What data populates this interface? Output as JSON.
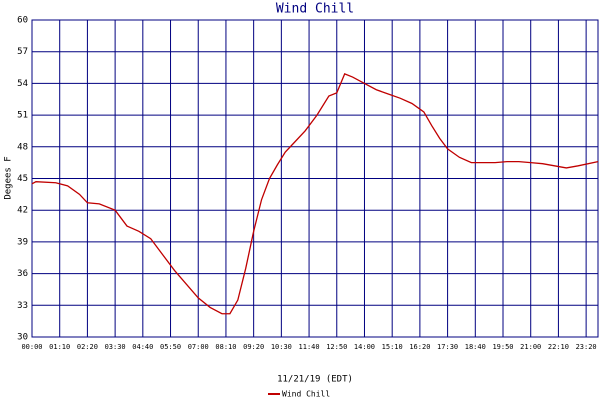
{
  "chart_data": {
    "type": "line",
    "title": "Wind Chill",
    "ylabel": "Degees F",
    "xlabel": "11/21/19 (EDT)",
    "x": [
      0,
      10,
      60,
      90,
      120,
      140,
      170,
      210,
      240,
      270,
      300,
      330,
      360,
      390,
      420,
      450,
      480,
      500,
      520,
      540,
      560,
      580,
      600,
      620,
      640,
      660,
      690,
      720,
      750,
      770,
      790,
      810,
      840,
      870,
      900,
      930,
      960,
      990,
      1010,
      1030,
      1050,
      1080,
      1110,
      1140,
      1170,
      1200,
      1230,
      1260,
      1290,
      1320,
      1350,
      1380,
      1430
    ],
    "series": [
      {
        "name": "Wind Chill",
        "color": "#c00000",
        "values": [
          44.5,
          44.7,
          44.6,
          44.3,
          43.5,
          42.7,
          42.6,
          42.0,
          40.5,
          40.0,
          39.3,
          37.8,
          36.3,
          35.0,
          33.7,
          32.8,
          32.2,
          32.2,
          33.5,
          36.5,
          40.0,
          43.0,
          45.0,
          46.3,
          47.5,
          48.3,
          49.5,
          51.0,
          52.8,
          53.1,
          54.9,
          54.6,
          54.0,
          53.4,
          53.0,
          52.6,
          52.1,
          51.3,
          50.0,
          48.8,
          47.8,
          47.0,
          46.5,
          46.5,
          46.5,
          46.6,
          46.6,
          46.5,
          46.4,
          46.2,
          46.0,
          46.2,
          46.6
        ]
      }
    ],
    "xlim": [
      0,
      1430
    ],
    "ylim": [
      30,
      60
    ],
    "xticks": [
      {
        "value": 0,
        "label": "00:00"
      },
      {
        "value": 70,
        "label": "01:10"
      },
      {
        "value": 140,
        "label": "02:20"
      },
      {
        "value": 210,
        "label": "03:30"
      },
      {
        "value": 280,
        "label": "04:40"
      },
      {
        "value": 350,
        "label": "05:50"
      },
      {
        "value": 420,
        "label": "07:00"
      },
      {
        "value": 490,
        "label": "08:10"
      },
      {
        "value": 560,
        "label": "09:20"
      },
      {
        "value": 630,
        "label": "10:30"
      },
      {
        "value": 700,
        "label": "11:40"
      },
      {
        "value": 770,
        "label": "12:50"
      },
      {
        "value": 840,
        "label": "14:00"
      },
      {
        "value": 910,
        "label": "15:10"
      },
      {
        "value": 980,
        "label": "16:20"
      },
      {
        "value": 1050,
        "label": "17:30"
      },
      {
        "value": 1120,
        "label": "18:40"
      },
      {
        "value": 1190,
        "label": "19:50"
      },
      {
        "value": 1260,
        "label": "21:00"
      },
      {
        "value": 1330,
        "label": "22:10"
      },
      {
        "value": 1400,
        "label": "23:20"
      }
    ],
    "yticks": [
      30,
      33,
      36,
      39,
      42,
      45,
      48,
      51,
      54,
      57,
      60
    ],
    "grid": true
  }
}
